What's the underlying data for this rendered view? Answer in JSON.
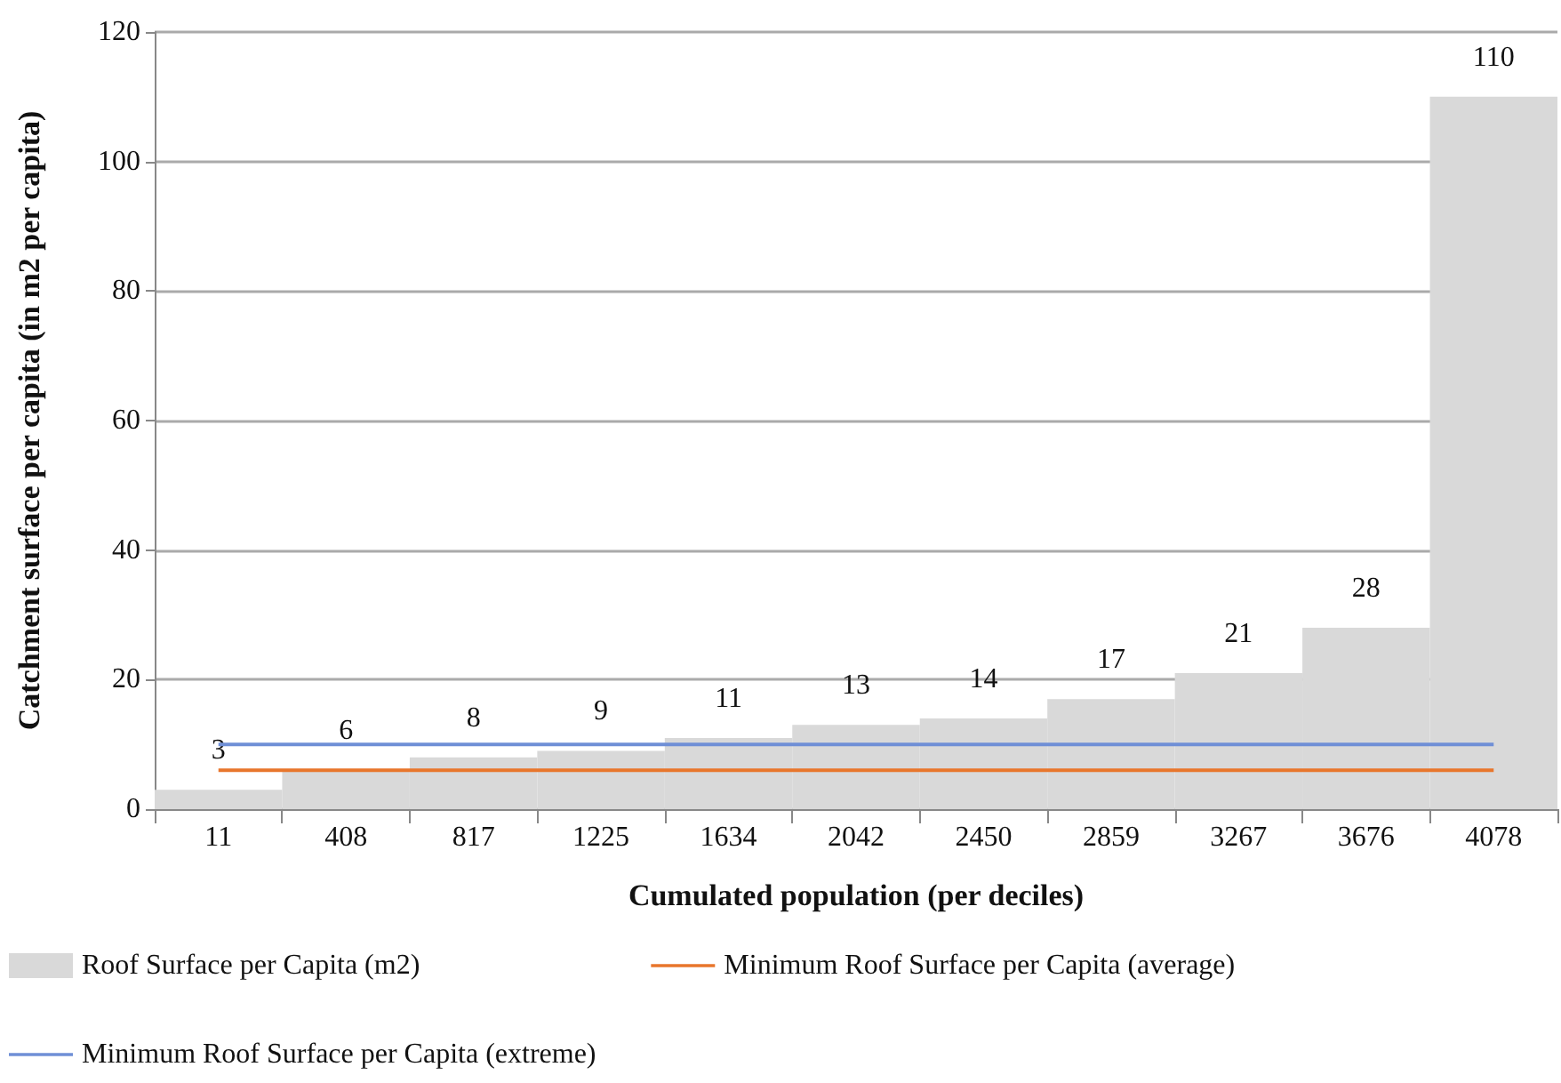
{
  "chart_data": {
    "type": "bar",
    "xlabel": "Cumulated population (per deciles)",
    "ylabel": "Catchment surface per capita (in m2 per capita)",
    "categories": [
      "11",
      "408",
      "817",
      "1225",
      "1634",
      "2042",
      "2450",
      "2859",
      "3267",
      "3676",
      "4078"
    ],
    "series": [
      {
        "name": "Roof Surface per Capita (m2)",
        "color": "#d9d9d9",
        "values": [
          3,
          6,
          8,
          9,
          11,
          13,
          14,
          17,
          21,
          28,
          110
        ],
        "value_labels": [
          "3",
          "6",
          "8",
          "9",
          "11",
          "13",
          "14",
          "17",
          "21",
          "28",
          "110"
        ]
      },
      {
        "name": "Minimum Roof Surface per Capita (average)",
        "type": "line",
        "color": "#e8762c",
        "values": [
          6,
          6,
          6,
          6,
          6,
          6,
          6,
          6,
          6,
          6,
          6
        ]
      },
      {
        "name": "Minimum Roof Surface per Capita (extreme)",
        "type": "line",
        "color": "#6f8fd6",
        "values": [
          10,
          10,
          10,
          10,
          10,
          10,
          10,
          10,
          10,
          10,
          10
        ]
      }
    ],
    "ylim": [
      0,
      120
    ],
    "yticks": [
      0,
      20,
      40,
      60,
      80,
      100,
      120
    ],
    "grid": "y",
    "legend": "bottom",
    "marker": "none"
  }
}
